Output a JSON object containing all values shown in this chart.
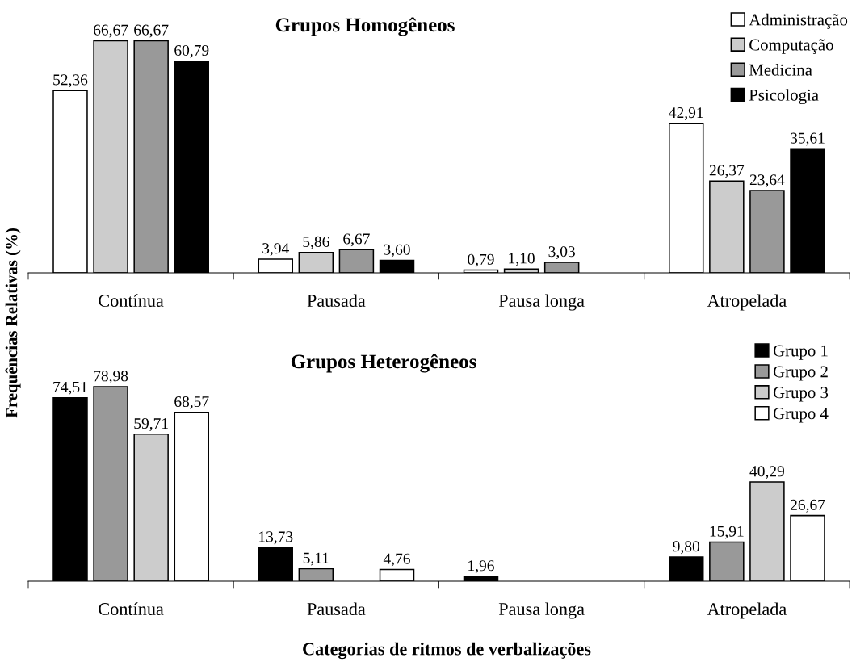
{
  "chart_data": [
    {
      "type": "bar",
      "title": "Grupos Homogêneos",
      "ylabel": "Frequências Relativas (%)",
      "categories": [
        "Contínua",
        "Pausada",
        "Pausa longa",
        "Atropelada"
      ],
      "series": [
        {
          "name": "Administração",
          "color": "#ffffff",
          "values": [
            52.36,
            3.94,
            0.79,
            42.91
          ],
          "value_labels": [
            "52,36",
            "3,94",
            "0,79",
            "42,91"
          ]
        },
        {
          "name": "Computação",
          "color": "#cccccc",
          "values": [
            66.67,
            5.86,
            1.1,
            26.37
          ],
          "value_labels": [
            "66,67",
            "5,86",
            "1,10",
            "26,37"
          ]
        },
        {
          "name": "Medicina",
          "color": "#999999",
          "values": [
            66.67,
            6.67,
            3.03,
            23.64
          ],
          "value_labels": [
            "66,67",
            "6,67",
            "3,03",
            "23,64"
          ]
        },
        {
          "name": "Psicologia",
          "color": "#000000",
          "values": [
            60.79,
            3.6,
            null,
            35.61
          ],
          "value_labels": [
            "60,79",
            "3,60",
            null,
            "35,61"
          ]
        }
      ],
      "legend": "top right",
      "tick_labels": "x"
    },
    {
      "type": "bar",
      "title": "Grupos Heterogêneos",
      "xlabel": "Categorias de ritmos de verbalizações",
      "categories": [
        "Contínua",
        "Pausada",
        "Pausa longa",
        "Atropelada"
      ],
      "series": [
        {
          "name": "Grupo 1",
          "color": "#000000",
          "values": [
            74.51,
            13.73,
            1.96,
            9.8
          ],
          "value_labels": [
            "74,51",
            "13,73",
            "1,96",
            "9,80"
          ]
        },
        {
          "name": "Grupo 2",
          "color": "#999999",
          "values": [
            78.98,
            5.11,
            null,
            15.91
          ],
          "value_labels": [
            "78,98",
            "5,11",
            null,
            "15,91"
          ]
        },
        {
          "name": "Grupo 3",
          "color": "#cccccc",
          "values": [
            59.71,
            null,
            null,
            40.29
          ],
          "value_labels": [
            "59,71",
            null,
            null,
            "40,29"
          ]
        },
        {
          "name": "Grupo 4",
          "color": "#ffffff",
          "values": [
            68.57,
            4.76,
            null,
            26.67
          ],
          "value_labels": [
            "68,57",
            "4,76",
            null,
            "26,67"
          ]
        }
      ],
      "legend": "top right",
      "tick_labels": "x"
    }
  ]
}
